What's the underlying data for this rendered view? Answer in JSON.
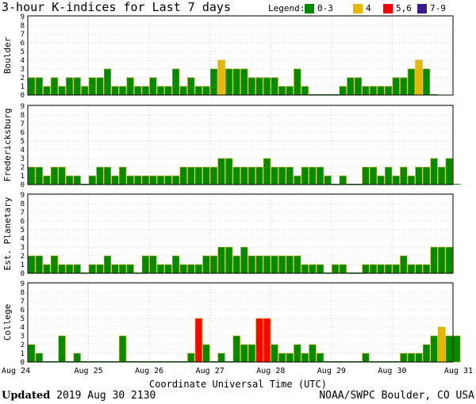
{
  "title": "3-hour K-indices for Last 7 days",
  "legend": {
    "label": "Legend:",
    "items": [
      {
        "label": "0-3",
        "color": "#008b00"
      },
      {
        "label": "4",
        "color": "#e8b800"
      },
      {
        "label": "5,6",
        "color": "#ff0000"
      },
      {
        "label": "7-9",
        "color": "#3a1a8c"
      }
    ]
  },
  "footer": {
    "updated_label": "Updated",
    "updated_value": "2019 Aug 30 2130",
    "credit": "NOAA/SWPC Boulder, CO USA"
  },
  "chart_data": {
    "type": "bar",
    "xlabel": "Coordinate Universal Time (UTC)",
    "x_tick_labels": [
      "Aug 24",
      "Aug 25",
      "Aug 26",
      "Aug 27",
      "Aug 28",
      "Aug 29",
      "Aug 30",
      "Aug 31"
    ],
    "y_tick_labels": [
      0,
      1,
      2,
      3,
      4,
      5,
      6,
      7,
      8,
      9
    ],
    "ylim": [
      0,
      9
    ],
    "bars_per_day": 8,
    "color_thresholds": {
      "0-3": "#008b00",
      "4": "#e8b800",
      "5,6": "#ff0000",
      "7-9": "#3a1a8c"
    },
    "panels": [
      {
        "station": "Boulder",
        "values": [
          2,
          2,
          1,
          2,
          1,
          2,
          2,
          1,
          2,
          2,
          3,
          1,
          1,
          2,
          1,
          1,
          2,
          1,
          1,
          3,
          1,
          2,
          1,
          1,
          3,
          4,
          3,
          3,
          3,
          2,
          2,
          2,
          2,
          1,
          1,
          3,
          1,
          0,
          0,
          0,
          0,
          1,
          2,
          2,
          1,
          1,
          1,
          1,
          2,
          2,
          3,
          4,
          3,
          0
        ]
      },
      {
        "station": "Fredericksburg",
        "values": [
          2,
          2,
          1,
          2,
          2,
          1,
          1,
          0,
          1,
          2,
          2,
          1,
          2,
          1,
          1,
          1,
          1,
          1,
          1,
          1,
          2,
          2,
          2,
          2,
          2,
          3,
          3,
          2,
          2,
          2,
          2,
          3,
          2,
          2,
          2,
          1,
          2,
          2,
          2,
          1,
          0,
          1,
          0,
          0,
          2,
          2,
          1,
          2,
          1,
          2,
          1,
          2,
          2,
          3,
          2,
          3,
          0
        ]
      },
      {
        "station": "Est. Planetary",
        "values": [
          2,
          2,
          1,
          2,
          1,
          1,
          1,
          0,
          1,
          1,
          2,
          1,
          1,
          1,
          0,
          2,
          2,
          1,
          1,
          2,
          1,
          1,
          1,
          2,
          2,
          3,
          3,
          2,
          3,
          2,
          2,
          2,
          2,
          2,
          2,
          2,
          1,
          1,
          1,
          0,
          1,
          1,
          0,
          0,
          1,
          1,
          1,
          1,
          1,
          2,
          1,
          1,
          1,
          3,
          3,
          3
        ]
      },
      {
        "station": "College",
        "values": [
          2,
          1,
          0,
          0,
          3,
          0,
          1,
          0,
          0,
          0,
          0,
          0,
          3,
          0,
          0,
          0,
          0,
          0,
          0,
          0,
          0,
          1,
          5,
          2,
          0,
          1,
          0,
          3,
          2,
          2,
          5,
          5,
          2,
          1,
          1,
          2,
          1,
          2,
          1,
          0,
          0,
          0,
          0,
          0,
          1,
          0,
          0,
          0,
          0,
          1,
          1,
          1,
          2,
          3,
          4,
          3,
          3
        ]
      }
    ]
  }
}
